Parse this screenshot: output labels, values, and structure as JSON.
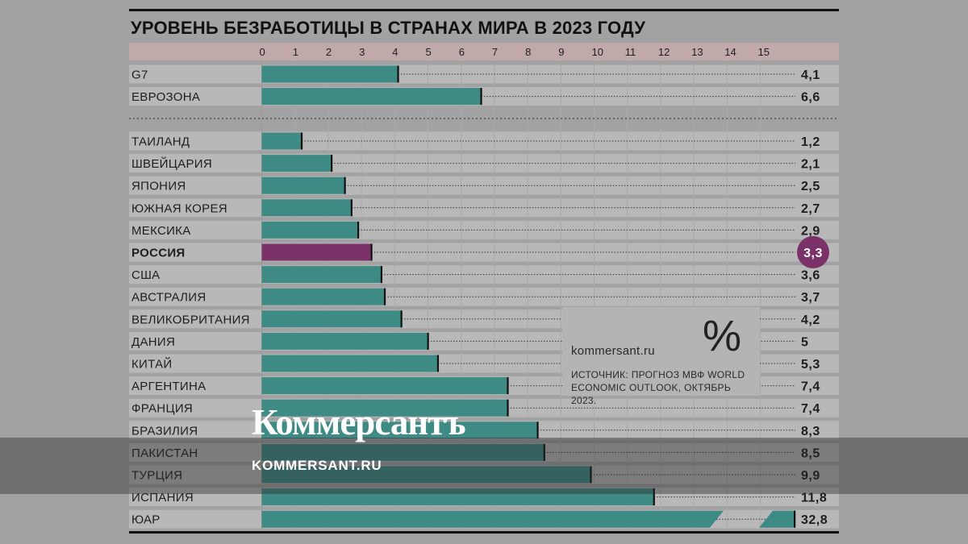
{
  "chart_data": {
    "type": "bar",
    "orientation": "horizontal",
    "title": "УРОВЕНЬ БЕЗРАБОТИЦЫ В СТРАНАХ МИРА В 2023 ГОДУ",
    "xlabel": "",
    "ylabel": "",
    "xlim": [
      0,
      16
    ],
    "x_ticks": [
      "0",
      "1",
      "2",
      "3",
      "4",
      "5",
      "6",
      "7",
      "8",
      "9",
      "10",
      "11",
      "12",
      "13",
      "14",
      "15"
    ],
    "axis_break_after": 15,
    "grid": true,
    "groups": [
      {
        "rows": [
          {
            "label": "G7",
            "value": 4.1,
            "display": "4,1"
          },
          {
            "label": "ЕВРОЗОНА",
            "value": 6.6,
            "display": "6,6"
          }
        ]
      },
      {
        "rows": [
          {
            "label": "ТАИЛАНД",
            "value": 1.2,
            "display": "1,2"
          },
          {
            "label": "ШВЕЙЦАРИЯ",
            "value": 2.1,
            "display": "2,1"
          },
          {
            "label": "ЯПОНИЯ",
            "value": 2.5,
            "display": "2,5"
          },
          {
            "label": "ЮЖНАЯ КОРЕЯ",
            "value": 2.7,
            "display": "2,7"
          },
          {
            "label": "МЕКСИКА",
            "value": 2.9,
            "display": "2,9"
          },
          {
            "label": "РОССИЯ",
            "value": 3.3,
            "display": "3,3",
            "highlight": true
          },
          {
            "label": "США",
            "value": 3.6,
            "display": "3,6"
          },
          {
            "label": "АВСТРАЛИЯ",
            "value": 3.7,
            "display": "3,7"
          },
          {
            "label": "ВЕЛИКОБРИТАНИЯ",
            "value": 4.2,
            "display": "4,2"
          },
          {
            "label": "ДАНИЯ",
            "value": 5,
            "display": "5"
          },
          {
            "label": "КИТАЙ",
            "value": 5.3,
            "display": "5,3"
          },
          {
            "label": "АРГЕНТИНА",
            "value": 7.4,
            "display": "7,4"
          },
          {
            "label": "ФРАНЦИЯ",
            "value": 7.4,
            "display": "7,4"
          },
          {
            "label": "БРАЗИЛИЯ",
            "value": 8.3,
            "display": "8,3"
          },
          {
            "label": "ПАКИСТАН",
            "value": 8.5,
            "display": "8,5"
          },
          {
            "label": "ТУРЦИЯ",
            "value": 9.9,
            "display": "9,9"
          },
          {
            "label": "ИСПАНИЯ",
            "value": 11.8,
            "display": "11,8"
          },
          {
            "label": "ЮАР",
            "value": 32.8,
            "display": "32,8",
            "broken": true
          }
        ]
      }
    ]
  },
  "colors": {
    "bar": "#3e8b85",
    "highlight": "#7a3268",
    "row_band": "#b8b8b8",
    "axis_band": "#c2a9a9",
    "rule": "#111111",
    "background": "#a2a2a2"
  },
  "source_box": {
    "site": "kommersant.ru",
    "symbol": "%",
    "text": "ИСТОЧНИК: ПРОГНОЗ МВФ WORLD ECONOMIC OUTLOOK, ОКТЯБРЬ 2023."
  },
  "watermark": {
    "logo": "Коммерсантъ",
    "site": "KOMMERSANT.RU"
  }
}
